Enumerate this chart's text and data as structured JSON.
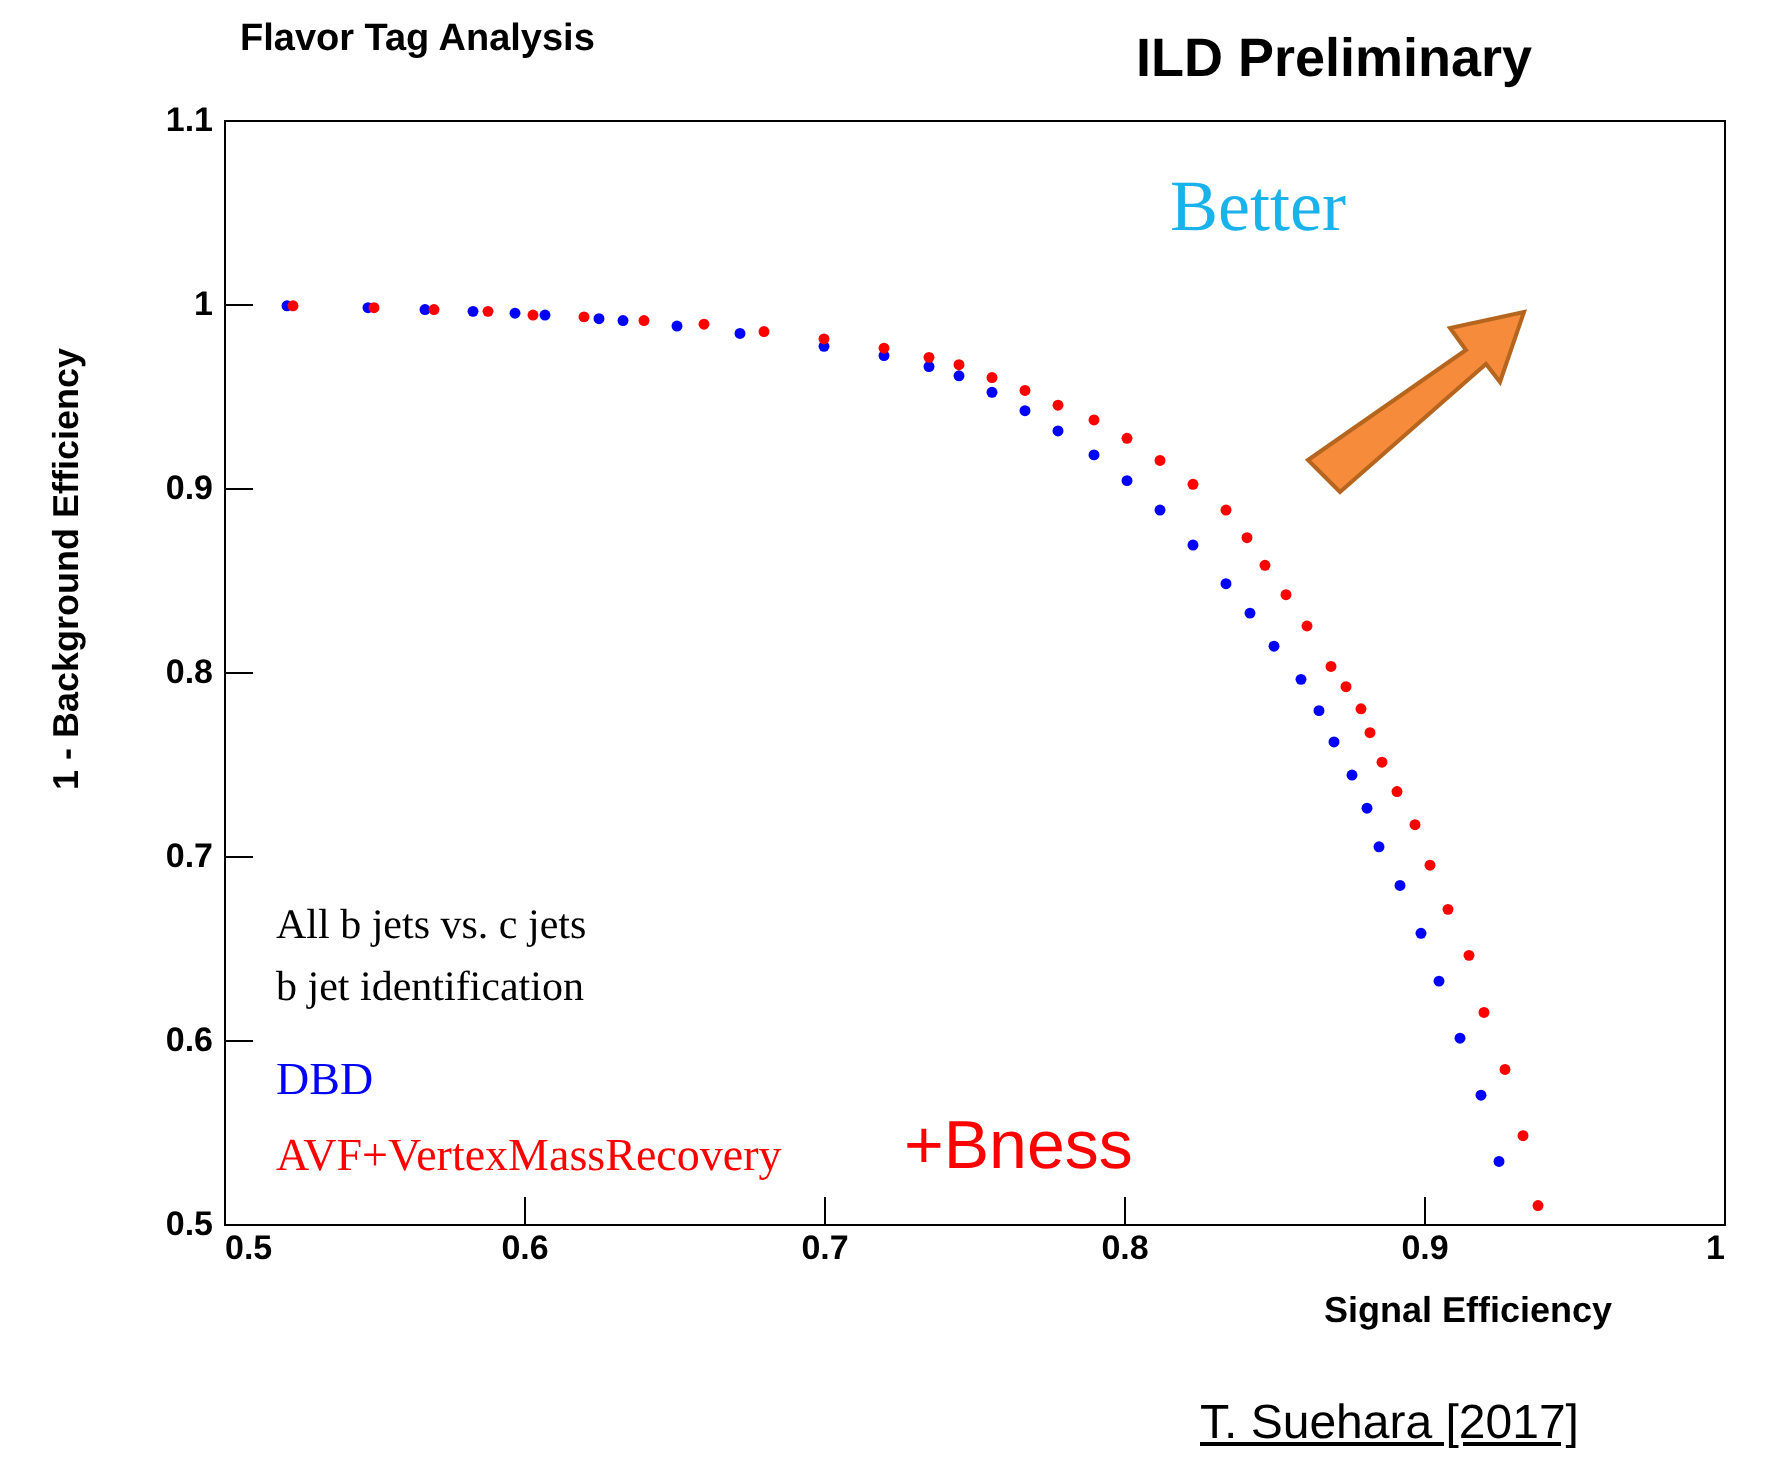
{
  "chart_data": {
    "type": "scatter",
    "title": "Flavor Tag Analysis",
    "subtitle": "ILD Preliminary",
    "xlabel": "Signal Efficiency",
    "ylabel": "1 - Background Efficiency",
    "xlim": [
      0.5,
      1
    ],
    "xticks": [
      0.5,
      0.6,
      0.7,
      0.8,
      0.9,
      1
    ],
    "ylim": [
      0.5,
      1.1
    ],
    "yticks": [
      0.5,
      0.6,
      0.7,
      0.8,
      0.9,
      1,
      1.1
    ],
    "grid": false,
    "legend": "bottom left",
    "marker": "circle",
    "annotations": [
      "Better",
      "All b jets vs. c jets",
      "b jet identification",
      "+Bness",
      "T. Suehara [2017]"
    ],
    "series": [
      {
        "name": "DBD",
        "color": "#0000ff",
        "x": [
          0.521,
          0.548,
          0.567,
          0.583,
          0.597,
          0.607,
          0.625,
          0.633,
          0.651,
          0.672,
          0.7,
          0.72,
          0.735,
          0.745,
          0.756,
          0.767,
          0.778,
          0.79,
          0.801,
          0.812,
          0.823,
          0.834,
          0.842,
          0.85,
          0.859,
          0.865,
          0.87,
          0.876,
          0.881,
          0.885,
          0.892,
          0.899,
          0.905,
          0.912,
          0.919,
          0.925
        ],
        "values": [
          0.999,
          0.998,
          0.997,
          0.996,
          0.995,
          0.994,
          0.992,
          0.991,
          0.988,
          0.984,
          0.977,
          0.972,
          0.966,
          0.961,
          0.952,
          0.942,
          0.931,
          0.918,
          0.904,
          0.888,
          0.869,
          0.848,
          0.832,
          0.814,
          0.796,
          0.779,
          0.762,
          0.744,
          0.726,
          0.705,
          0.684,
          0.658,
          0.632,
          0.601,
          0.57,
          0.534
        ]
      },
      {
        "name": "AVF+VertexMassRecovery",
        "color": "#ff0000",
        "x": [
          0.523,
          0.55,
          0.57,
          0.588,
          0.603,
          0.62,
          0.64,
          0.66,
          0.68,
          0.7,
          0.72,
          0.735,
          0.745,
          0.756,
          0.767,
          0.778,
          0.79,
          0.801,
          0.812,
          0.823,
          0.834,
          0.841,
          0.847,
          0.854,
          0.861,
          0.869,
          0.874,
          0.879,
          0.882,
          0.886,
          0.891,
          0.897,
          0.902,
          0.908,
          0.915,
          0.92,
          0.927,
          0.933,
          0.938
        ],
        "values": [
          0.999,
          0.998,
          0.997,
          0.996,
          0.994,
          0.993,
          0.991,
          0.989,
          0.985,
          0.981,
          0.976,
          0.971,
          0.967,
          0.96,
          0.953,
          0.945,
          0.937,
          0.927,
          0.915,
          0.902,
          0.888,
          0.873,
          0.858,
          0.842,
          0.825,
          0.803,
          0.792,
          0.78,
          0.767,
          0.751,
          0.735,
          0.717,
          0.695,
          0.671,
          0.646,
          0.615,
          0.584,
          0.548,
          0.51
        ]
      }
    ]
  }
}
